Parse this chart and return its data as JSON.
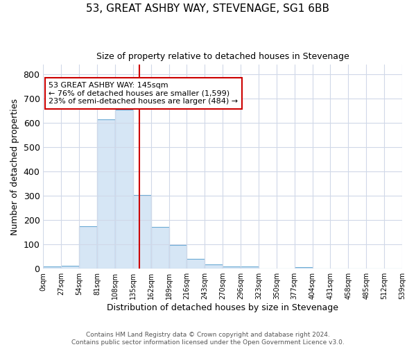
{
  "title": "53, GREAT ASHBY WAY, STEVENAGE, SG1 6BB",
  "subtitle": "Size of property relative to detached houses in Stevenage",
  "xlabel": "Distribution of detached houses by size in Stevenage",
  "ylabel": "Number of detached properties",
  "bin_labels": [
    "0sqm",
    "27sqm",
    "54sqm",
    "81sqm",
    "108sqm",
    "135sqm",
    "162sqm",
    "189sqm",
    "216sqm",
    "243sqm",
    "270sqm",
    "296sqm",
    "323sqm",
    "350sqm",
    "377sqm",
    "404sqm",
    "431sqm",
    "458sqm",
    "485sqm",
    "512sqm",
    "539sqm"
  ],
  "bar_heights": [
    8,
    13,
    175,
    615,
    655,
    305,
    172,
    98,
    42,
    17,
    10,
    8,
    2,
    0,
    5,
    0,
    0,
    0,
    0,
    0
  ],
  "bar_color": "#d6e6f5",
  "bar_edge_color": "#6aaad4",
  "vline_color": "#cc0000",
  "annotation_text": "53 GREAT ASHBY WAY: 145sqm\n← 76% of detached houses are smaller (1,599)\n23% of semi-detached houses are larger (484) →",
  "annotation_box_color": "#ffffff",
  "annotation_box_edge": "#cc0000",
  "ylim": [
    0,
    840
  ],
  "yticks": [
    0,
    100,
    200,
    300,
    400,
    500,
    600,
    700,
    800
  ],
  "footnote": "Contains HM Land Registry data © Crown copyright and database right 2024.\nContains public sector information licensed under the Open Government Licence v3.0.",
  "bg_color": "#ffffff",
  "plot_bg_color": "#ffffff",
  "grid_color": "#d0d8e8"
}
